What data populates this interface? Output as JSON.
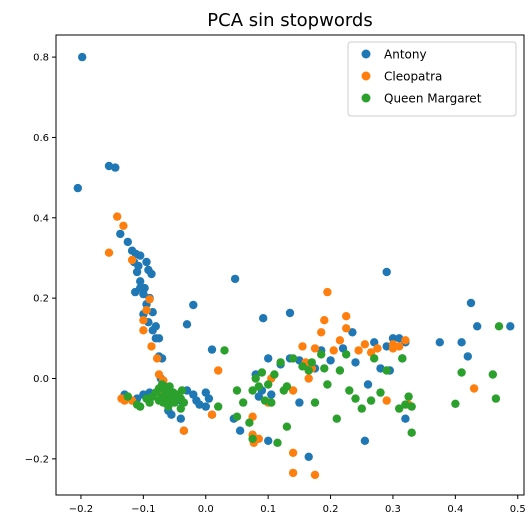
{
  "chart_data": {
    "type": "scatter",
    "title": "PCA sin stopwords",
    "xlabel": "",
    "ylabel": "",
    "xlim": [
      -0.24,
      0.51
    ],
    "ylim": [
      -0.29,
      0.855
    ],
    "xticks": [
      -0.2,
      -0.1,
      0.0,
      0.1,
      0.2,
      0.3,
      0.4,
      0.5
    ],
    "xtick_labels": [
      "−0.2",
      "−0.1",
      "0.0",
      "0.1",
      "0.2",
      "0.3",
      "0.4",
      "0.5"
    ],
    "yticks": [
      -0.2,
      0.0,
      0.2,
      0.4,
      0.6,
      0.8
    ],
    "ytick_labels": [
      "−0.2",
      "0.0",
      "0.2",
      "0.4",
      "0.6",
      "0.8"
    ],
    "grid": false,
    "legend": "top-right",
    "series": [
      {
        "name": "Antony",
        "color": "#1f77b4",
        "points": [
          [
            -0.198,
            0.8
          ],
          [
            -0.205,
            0.474
          ],
          [
            -0.155,
            0.529
          ],
          [
            -0.145,
            0.525
          ],
          [
            -0.137,
            0.36
          ],
          [
            -0.125,
            0.34
          ],
          [
            -0.118,
            0.318
          ],
          [
            -0.112,
            0.31
          ],
          [
            -0.105,
            0.306
          ],
          [
            -0.115,
            0.29
          ],
          [
            -0.108,
            0.28
          ],
          [
            -0.095,
            0.29
          ],
          [
            -0.092,
            0.27
          ],
          [
            -0.087,
            0.26
          ],
          [
            -0.11,
            0.265
          ],
          [
            -0.105,
            0.242
          ],
          [
            -0.098,
            0.225
          ],
          [
            -0.105,
            0.225
          ],
          [
            -0.113,
            0.215
          ],
          [
            -0.1,
            0.21
          ],
          [
            -0.09,
            0.2
          ],
          [
            -0.095,
            0.185
          ],
          [
            -0.085,
            0.165
          ],
          [
            -0.1,
            0.16
          ],
          [
            -0.092,
            0.14
          ],
          [
            -0.08,
            0.13
          ],
          [
            -0.085,
            0.12
          ],
          [
            -0.075,
            0.1
          ],
          [
            -0.08,
            0.1
          ],
          [
            -0.075,
            0.055
          ],
          [
            -0.07,
            0.05
          ],
          [
            -0.072,
            0.0
          ],
          [
            -0.065,
            -0.02
          ],
          [
            -0.03,
            0.135
          ],
          [
            -0.02,
            0.183
          ],
          [
            0.047,
            0.248
          ],
          [
            0.092,
            0.15
          ],
          [
            0.135,
            0.163
          ],
          [
            0.01,
            0.072
          ],
          [
            -0.13,
            -0.04
          ],
          [
            -0.125,
            -0.045
          ],
          [
            -0.11,
            -0.05
          ],
          [
            -0.1,
            -0.04
          ],
          [
            -0.09,
            -0.035
          ],
          [
            -0.06,
            -0.045
          ],
          [
            -0.05,
            -0.05
          ],
          [
            -0.04,
            -0.055
          ],
          [
            -0.03,
            -0.03
          ],
          [
            -0.02,
            -0.04
          ],
          [
            -0.015,
            -0.055
          ],
          [
            -0.01,
            -0.065
          ],
          [
            0.0,
            -0.035
          ],
          [
            0.005,
            -0.05
          ],
          [
            -0.06,
            -0.08
          ],
          [
            -0.055,
            -0.09
          ],
          [
            -0.04,
            -0.1
          ],
          [
            -0.035,
            -0.13
          ],
          [
            0.0,
            -0.07
          ],
          [
            0.01,
            -0.09
          ],
          [
            0.045,
            -0.1
          ],
          [
            0.055,
            -0.13
          ],
          [
            0.1,
            -0.155
          ],
          [
            0.085,
            -0.045
          ],
          [
            0.09,
            -0.03
          ],
          [
            0.08,
            0.01
          ],
          [
            0.1,
            0.05
          ],
          [
            0.12,
            0.035
          ],
          [
            0.135,
            0.05
          ],
          [
            0.15,
            0.045
          ],
          [
            0.165,
            0.03
          ],
          [
            0.175,
            0.025
          ],
          [
            0.185,
            0.07
          ],
          [
            0.2,
            0.045
          ],
          [
            0.22,
            0.075
          ],
          [
            0.235,
            0.115
          ],
          [
            0.24,
            0.04
          ],
          [
            0.26,
            -0.015
          ],
          [
            0.27,
            0.09
          ],
          [
            0.28,
            0.025
          ],
          [
            0.29,
            0.265
          ],
          [
            0.29,
            0.08
          ],
          [
            0.295,
            0.02
          ],
          [
            0.3,
            0.1
          ],
          [
            0.31,
            0.1
          ],
          [
            0.315,
            0.05
          ],
          [
            0.32,
            -0.1
          ],
          [
            0.32,
            0.09
          ],
          [
            0.255,
            -0.155
          ],
          [
            0.165,
            -0.195
          ],
          [
            0.375,
            0.09
          ],
          [
            0.41,
            0.09
          ],
          [
            0.42,
            0.055
          ],
          [
            0.425,
            0.188
          ],
          [
            0.435,
            0.13
          ],
          [
            0.488,
            0.13
          ],
          [
            0.105,
            -0.04
          ],
          [
            0.15,
            -0.06
          ]
        ]
      },
      {
        "name": "Cleopatra",
        "color": "#ff7f0e",
        "points": [
          [
            -0.142,
            0.403
          ],
          [
            -0.155,
            0.313
          ],
          [
            -0.132,
            0.38
          ],
          [
            -0.118,
            0.295
          ],
          [
            -0.09,
            0.197
          ],
          [
            -0.095,
            0.17
          ],
          [
            -0.1,
            0.145
          ],
          [
            -0.1,
            0.12
          ],
          [
            -0.087,
            0.08
          ],
          [
            -0.078,
            0.05
          ],
          [
            -0.075,
            0.01
          ],
          [
            -0.068,
            -0.005
          ],
          [
            -0.135,
            -0.05
          ],
          [
            -0.13,
            -0.055
          ],
          [
            -0.118,
            -0.055
          ],
          [
            -0.07,
            -0.04
          ],
          [
            -0.06,
            -0.03
          ],
          [
            -0.035,
            -0.13
          ],
          [
            0.02,
            0.02
          ],
          [
            0.01,
            -0.09
          ],
          [
            0.075,
            -0.095
          ],
          [
            0.075,
            -0.14
          ],
          [
            0.077,
            -0.16
          ],
          [
            0.085,
            -0.15
          ],
          [
            0.14,
            -0.185
          ],
          [
            0.14,
            -0.235
          ],
          [
            0.175,
            -0.24
          ],
          [
            0.155,
            0.08
          ],
          [
            0.16,
            0.04
          ],
          [
            0.165,
            0.0
          ],
          [
            0.17,
            0.025
          ],
          [
            0.175,
            0.075
          ],
          [
            0.185,
            0.115
          ],
          [
            0.19,
            0.145
          ],
          [
            0.195,
            0.215
          ],
          [
            0.205,
            0.07
          ],
          [
            0.215,
            0.095
          ],
          [
            0.225,
            0.155
          ],
          [
            0.225,
            0.125
          ],
          [
            0.245,
            0.07
          ],
          [
            0.255,
            0.085
          ],
          [
            0.265,
            0.065
          ],
          [
            0.275,
            0.075
          ],
          [
            0.29,
            -0.055
          ],
          [
            0.3,
            0.075
          ],
          [
            0.3,
            0.085
          ],
          [
            0.31,
            0.08
          ],
          [
            0.32,
            0.095
          ],
          [
            0.325,
            -0.065
          ],
          [
            0.43,
            -0.025
          ],
          [
            0.14,
            -0.03
          ],
          [
            0.105,
            0.0
          ],
          [
            0.1,
            -0.06
          ]
        ]
      },
      {
        "name": "Queen Margaret",
        "color": "#2ca02c",
        "points": [
          [
            -0.125,
            -0.045
          ],
          [
            -0.11,
            -0.065
          ],
          [
            -0.105,
            -0.07
          ],
          [
            -0.095,
            -0.05
          ],
          [
            -0.09,
            -0.06
          ],
          [
            -0.085,
            -0.045
          ],
          [
            -0.08,
            -0.035
          ],
          [
            -0.075,
            -0.055
          ],
          [
            -0.075,
            -0.025
          ],
          [
            -0.07,
            -0.045
          ],
          [
            -0.07,
            -0.015
          ],
          [
            -0.068,
            -0.06
          ],
          [
            -0.065,
            -0.03
          ],
          [
            -0.062,
            -0.04
          ],
          [
            -0.06,
            -0.055
          ],
          [
            -0.058,
            -0.02
          ],
          [
            -0.055,
            -0.045
          ],
          [
            -0.052,
            -0.035
          ],
          [
            -0.05,
            -0.06
          ],
          [
            -0.045,
            -0.04
          ],
          [
            -0.04,
            -0.05
          ],
          [
            -0.038,
            -0.03
          ],
          [
            -0.035,
            -0.06
          ],
          [
            -0.06,
            -0.07
          ],
          [
            -0.04,
            -0.075
          ],
          [
            0.03,
            0.07
          ],
          [
            0.02,
            -0.07
          ],
          [
            0.05,
            -0.095
          ],
          [
            0.05,
            -0.03
          ],
          [
            0.06,
            -0.06
          ],
          [
            0.07,
            -0.11
          ],
          [
            0.075,
            -0.15
          ],
          [
            0.075,
            -0.03
          ],
          [
            0.08,
            0.0
          ],
          [
            0.085,
            -0.02
          ],
          [
            0.09,
            0.015
          ],
          [
            0.095,
            -0.055
          ],
          [
            0.1,
            -0.015
          ],
          [
            0.105,
            -0.06
          ],
          [
            0.11,
            0.01
          ],
          [
            0.115,
            -0.16
          ],
          [
            0.12,
            0.04
          ],
          [
            0.125,
            -0.03
          ],
          [
            0.13,
            -0.02
          ],
          [
            0.13,
            -0.12
          ],
          [
            0.14,
            0.05
          ],
          [
            0.155,
            0.03
          ],
          [
            0.165,
            0.02
          ],
          [
            0.17,
            0.04
          ],
          [
            0.175,
            -0.06
          ],
          [
            0.185,
            0.06
          ],
          [
            0.19,
            0.025
          ],
          [
            0.195,
            -0.015
          ],
          [
            0.21,
            -0.1
          ],
          [
            0.215,
            0.02
          ],
          [
            0.225,
            0.06
          ],
          [
            0.23,
            -0.03
          ],
          [
            0.24,
            -0.05
          ],
          [
            0.25,
            -0.075
          ],
          [
            0.265,
            -0.055
          ],
          [
            0.27,
            0.05
          ],
          [
            0.28,
            -0.035
          ],
          [
            0.29,
            0.02
          ],
          [
            0.31,
            -0.075
          ],
          [
            0.315,
            0.05
          ],
          [
            0.32,
            -0.065
          ],
          [
            0.325,
            -0.045
          ],
          [
            0.33,
            -0.135
          ],
          [
            0.33,
            -0.07
          ],
          [
            0.4,
            -0.063
          ],
          [
            0.41,
            0.015
          ],
          [
            0.46,
            0.01
          ],
          [
            0.465,
            -0.05
          ],
          [
            0.47,
            0.13
          ]
        ]
      }
    ]
  }
}
